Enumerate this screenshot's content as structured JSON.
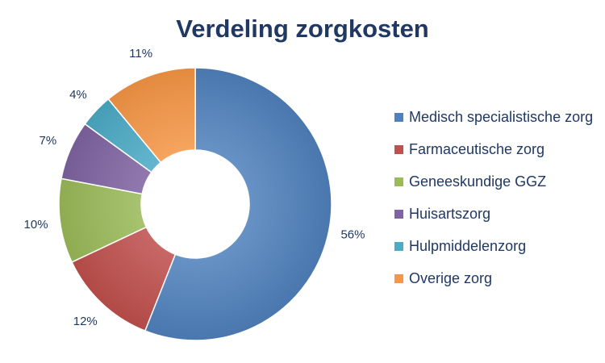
{
  "chart_data": {
    "type": "pie",
    "variant": "donut",
    "title": "Verdeling zorgkosten",
    "categories": [
      "Medisch specialistische zorg",
      "Farmaceutische zorg",
      "Geneeskundige GGZ",
      "Huisartszorg",
      "Hulpmiddelenzorg",
      "Overige zorg"
    ],
    "values": [
      56,
      12,
      10,
      7,
      4,
      11
    ],
    "value_labels": [
      "56%",
      "12%",
      "10%",
      "7%",
      "4%",
      "11%"
    ],
    "colors": [
      "#4f81bd",
      "#c0504d",
      "#9bbb59",
      "#8064a2",
      "#4bacc6",
      "#f79646"
    ],
    "legend_position": "right"
  }
}
